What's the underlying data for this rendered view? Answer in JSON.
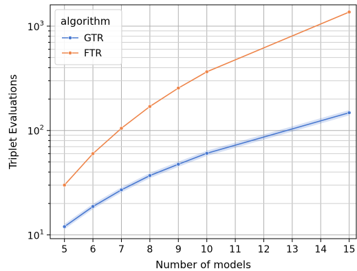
{
  "chart_data": {
    "type": "line",
    "xlabel": "Number of models",
    "ylabel": "Triplet Evaluations",
    "x": [
      5,
      6,
      7,
      8,
      9,
      10,
      15
    ],
    "xticks": [
      5,
      6,
      7,
      8,
      9,
      10,
      11,
      12,
      13,
      14,
      15
    ],
    "xlim": [
      4.5,
      15.25
    ],
    "ylim": [
      9.2,
      1600
    ],
    "yscale": "log",
    "ytick_labels": [
      {
        "base": "10",
        "exp": "1",
        "value": 10
      },
      {
        "base": "10",
        "exp": "2",
        "value": 100
      },
      {
        "base": "10",
        "exp": "3",
        "value": 1000
      }
    ],
    "grid": true,
    "legend": {
      "title": "algorithm",
      "placement": "top-left"
    },
    "series": [
      {
        "name": "GTR",
        "color": "#4878d0",
        "band": true,
        "values": [
          12,
          18.7,
          27,
          37,
          47.5,
          60.5,
          148
        ]
      },
      {
        "name": "FTR",
        "color": "#ee854a",
        "band": false,
        "values": [
          30,
          60,
          105,
          170,
          255,
          365,
          1365
        ]
      }
    ]
  }
}
